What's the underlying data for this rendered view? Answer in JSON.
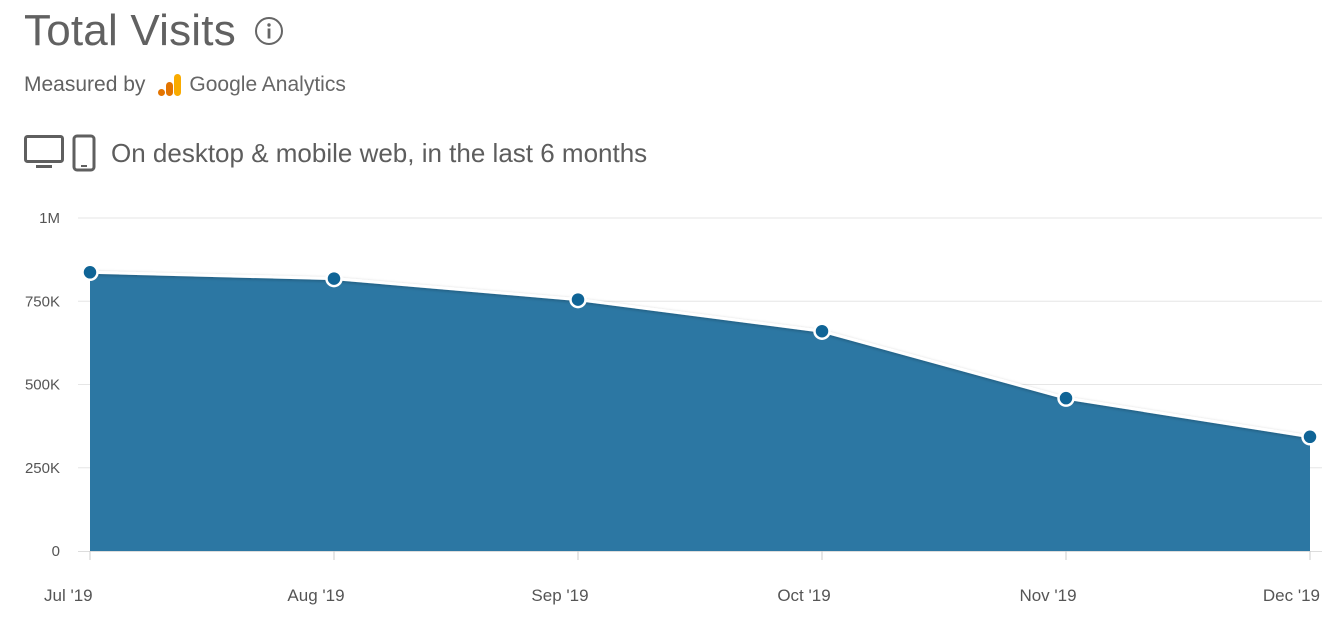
{
  "header": {
    "title": "Total Visits",
    "measured_by": "Measured by",
    "provider": "Google Analytics",
    "scope": "On desktop & mobile web, in the last 6 months"
  },
  "icons": {
    "info": "info-icon",
    "provider_logo": "google-analytics-logo",
    "desktop": "desktop-icon",
    "mobile": "mobile-icon"
  },
  "colors": {
    "area_fill": "#2c77a3",
    "marker_fill": "#0f6496",
    "line": "#ffffff",
    "ga_orange": "#f9ab00",
    "ga_orange_dark": "#e37400"
  },
  "chart_data": {
    "type": "area",
    "categories": [
      "Jul '19",
      "Aug '19",
      "Sep '19",
      "Oct '19",
      "Nov '19",
      "Dec '19"
    ],
    "series": [
      {
        "values": [
          837000,
          818000,
          755000,
          660000,
          459000,
          343000
        ]
      }
    ],
    "ylim": [
      0,
      1000000
    ],
    "yticks": [
      0,
      250000,
      500000,
      750000,
      1000000
    ],
    "ytick_labels": [
      "0",
      "250K",
      "500K",
      "750K",
      "1M"
    ],
    "grid": true,
    "legend": "none"
  }
}
